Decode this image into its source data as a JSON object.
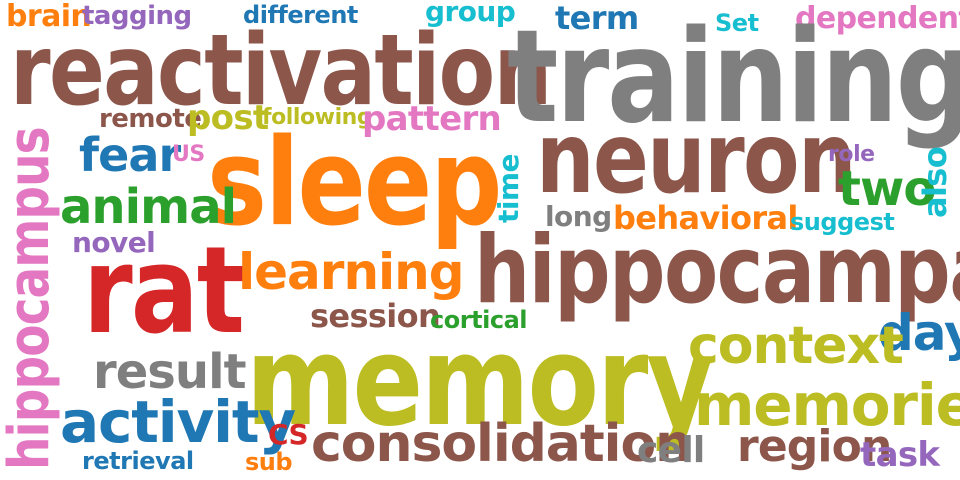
{
  "colors": {
    "orange": "#ff7f0e",
    "purple": "#9467bd",
    "blue": "#1f77b4",
    "cyan": "#17becf",
    "pink": "#e377c2",
    "brown": "#8c564b",
    "gray": "#7f7f7f",
    "olive": "#bcbd22",
    "green": "#2ca02c",
    "red": "#d62728"
  },
  "words": [
    {
      "text": "brain",
      "color": "orange"
    },
    {
      "text": "tagging",
      "color": "purple"
    },
    {
      "text": "different",
      "color": "blue"
    },
    {
      "text": "group",
      "color": "cyan"
    },
    {
      "text": "term",
      "color": "blue"
    },
    {
      "text": "Set",
      "color": "cyan"
    },
    {
      "text": "dependent",
      "color": "pink"
    },
    {
      "text": "reactivation",
      "color": "brown"
    },
    {
      "text": "training",
      "color": "gray"
    },
    {
      "text": "remote",
      "color": "brown"
    },
    {
      "text": "post",
      "color": "olive"
    },
    {
      "text": "following",
      "color": "olive"
    },
    {
      "text": "pattern",
      "color": "pink"
    },
    {
      "text": "hippocampus",
      "color": "pink"
    },
    {
      "text": "fear",
      "color": "blue"
    },
    {
      "text": "US",
      "color": "pink"
    },
    {
      "text": "sleep",
      "color": "orange"
    },
    {
      "text": "time",
      "color": "cyan"
    },
    {
      "text": "neuron",
      "color": "brown"
    },
    {
      "text": "role",
      "color": "purple"
    },
    {
      "text": "two",
      "color": "green"
    },
    {
      "text": "also",
      "color": "cyan"
    },
    {
      "text": "animal",
      "color": "green"
    },
    {
      "text": "long",
      "color": "gray"
    },
    {
      "text": "behavioral",
      "color": "orange"
    },
    {
      "text": "suggest",
      "color": "cyan"
    },
    {
      "text": "novel",
      "color": "purple"
    },
    {
      "text": "rat",
      "color": "red"
    },
    {
      "text": "learning",
      "color": "orange"
    },
    {
      "text": "hippocampal",
      "color": "brown"
    },
    {
      "text": "session",
      "color": "brown"
    },
    {
      "text": "cortical",
      "color": "green"
    },
    {
      "text": "day",
      "color": "blue"
    },
    {
      "text": "context",
      "color": "olive"
    },
    {
      "text": "result",
      "color": "gray"
    },
    {
      "text": "memory",
      "color": "olive"
    },
    {
      "text": "memories",
      "color": "olive"
    },
    {
      "text": "activity",
      "color": "blue"
    },
    {
      "text": "CS",
      "color": "red"
    },
    {
      "text": "consolidation",
      "color": "brown"
    },
    {
      "text": "cell",
      "color": "gray"
    },
    {
      "text": "region",
      "color": "brown"
    },
    {
      "text": "task",
      "color": "purple"
    },
    {
      "text": "retrieval",
      "color": "blue"
    },
    {
      "text": "sub",
      "color": "orange"
    }
  ]
}
